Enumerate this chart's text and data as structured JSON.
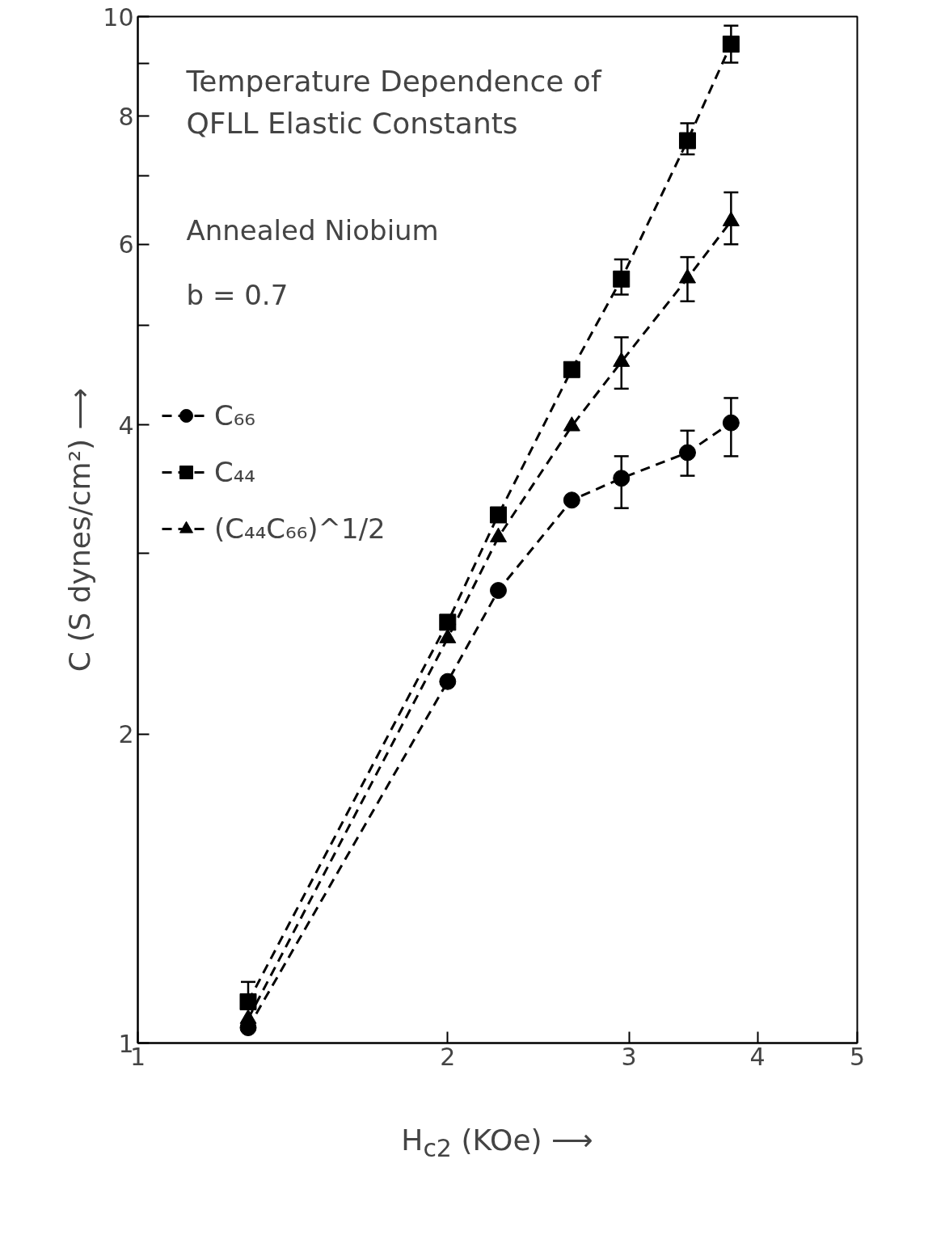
{
  "chart_data": {
    "type": "line",
    "title": "Temperature Dependence of\nQFLL Elastic Constants",
    "xlabel": "H$_{c2}$ (KOe) ⟶",
    "ylabel": "C (S dynes/cm²) ⟶",
    "annotations": [
      "Annealed Niobium",
      "b = 0.7"
    ],
    "log": "xy",
    "xlim": [
      1,
      5
    ],
    "ylim": [
      1,
      10
    ],
    "xticks": [
      1,
      2,
      3,
      4,
      5
    ],
    "yticks": [
      1,
      2,
      {
        "value": 3,
        "label": null
      },
      4,
      {
        "value": 5,
        "label": null
      },
      6,
      {
        "value": 7,
        "label": null
      },
      8,
      {
        "value": 9,
        "label": null
      },
      10
    ],
    "x": [
      1.28,
      2.0,
      2.24,
      2.64,
      2.95,
      3.42,
      3.77
    ],
    "legend": "top left",
    "grid": false,
    "line_style": "dashed",
    "series": [
      {
        "name": "C₆₆",
        "color": "#000000",
        "marker": "circle",
        "values": [
          1.035,
          2.25,
          2.76,
          3.38,
          3.55,
          3.76,
          4.02
        ],
        "errors": [
          null,
          null,
          null,
          null,
          [
            3.32,
            3.73
          ],
          [
            3.57,
            3.95
          ],
          [
            3.73,
            4.25
          ]
        ]
      },
      {
        "name": "C₄₄",
        "color": "#000000",
        "marker": "square",
        "values": [
          1.097,
          2.57,
          3.27,
          4.53,
          5.55,
          7.57,
          9.4
        ],
        "errors": [
          [
            1.097,
            1.147
          ],
          null,
          null,
          null,
          [
            5.36,
            5.8
          ],
          [
            7.34,
            7.87
          ],
          [
            9.02,
            9.8
          ]
        ]
      },
      {
        "name": "(C₄₄C₆₆)^1/2",
        "color": "#000000",
        "marker": "triangle",
        "values": [
          1.056,
          2.48,
          3.11,
          3.99,
          4.61,
          5.56,
          6.32
        ],
        "errors": [
          null,
          null,
          null,
          null,
          [
            4.34,
            4.87
          ],
          [
            5.28,
            5.83
          ],
          [
            6.0,
            6.74
          ]
        ]
      }
    ]
  }
}
